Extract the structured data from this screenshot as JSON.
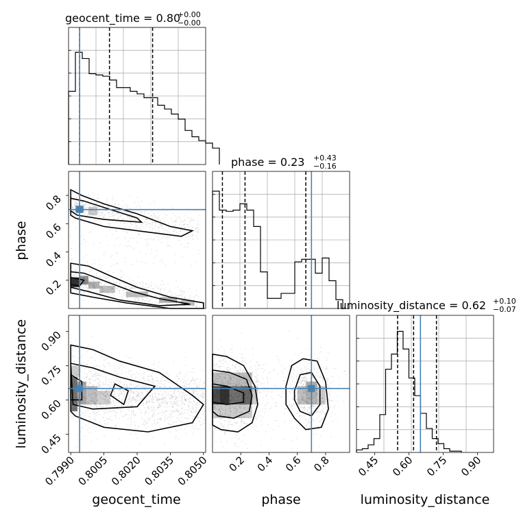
{
  "chart_data": {
    "type": "corner",
    "parameters": [
      "geocent_time",
      "phase",
      "luminosity_distance"
    ],
    "truths": {
      "geocent_time": 0.7994,
      "phase": 0.7,
      "luminosity_distance": 0.65
    },
    "colors": {
      "truth": "#4682b4",
      "hist": "#000000",
      "grid": "#b0b0b0",
      "points": "#999999"
    },
    "titles": {
      "geocent_time": {
        "text": "geocent_time = 0.80",
        "sup": "+0.00",
        "sub": "−0.00"
      },
      "phase": {
        "text": "phase = 0.23",
        "sup": "+0.43",
        "sub": "−0.16"
      },
      "luminosity_distance": {
        "text": "luminosity_distance = 0.62",
        "sup": "+0.10",
        "sub": "−0.07"
      }
    },
    "axis_labels": {
      "x": [
        "geocent_time",
        "phase",
        "luminosity_distance"
      ],
      "y": [
        "phase",
        "luminosity_distance"
      ]
    },
    "ticks": {
      "geocent_time": [
        "0.7990",
        "0.8005",
        "0.8020",
        "0.8035",
        "0.8050"
      ],
      "phase": [
        "0.2",
        "0.4",
        "0.6",
        "0.8"
      ],
      "phase_y": [
        "0.2",
        "0.4",
        "0.6",
        "0.8"
      ],
      "luminosity_distance": [
        "0.45",
        "0.60",
        "0.75",
        "0.90"
      ]
    },
    "ranges": {
      "geocent_time": [
        0.7989,
        0.8051
      ],
      "phase": [
        0.0,
        0.97
      ],
      "luminosity_distance": [
        0.37,
        0.97
      ]
    },
    "quantiles": {
      "geocent_time": [
        0.7994,
        0.80075,
        0.8027
      ],
      "phase": [
        0.07,
        0.23,
        0.66
      ],
      "luminosity_distance": [
        0.55,
        0.62,
        0.72
      ]
    },
    "histograms": {
      "geocent_time": {
        "edges_start": 0.7989,
        "bin_width": 0.00031,
        "counts": [
          0.58,
          0.89,
          0.84,
          0.72,
          0.71,
          0.7,
          0.67,
          0.61,
          0.61,
          0.58,
          0.56,
          0.53,
          0.53,
          0.47,
          0.44,
          0.4,
          0.36,
          0.27,
          0.22,
          0.19,
          0.17,
          0.13
        ]
      },
      "phase": {
        "edges_start": 0.0,
        "bin_width": 0.0485,
        "counts": [
          0.93,
          0.78,
          0.77,
          0.78,
          0.83,
          0.78,
          0.65,
          0.29,
          0.08,
          0.08,
          0.12,
          0.12,
          0.37,
          0.39,
          0.39,
          0.28,
          0.4,
          0.22,
          0.07
        ]
      },
      "luminosity_distance": {
        "edges_start": 0.37,
        "bin_width": 0.0255,
        "counts": [
          0.02,
          0.03,
          0.06,
          0.11,
          0.3,
          0.66,
          0.78,
          0.96,
          0.82,
          0.59,
          0.45,
          0.31,
          0.19,
          0.11,
          0.07,
          0.03,
          0.01,
          0.01
        ]
      }
    }
  }
}
